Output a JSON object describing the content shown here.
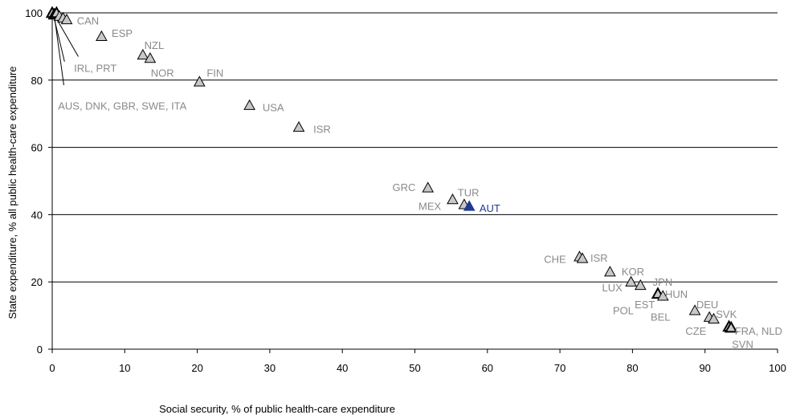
{
  "chart_data": {
    "type": "scatter",
    "xlabel": "Social security, % of public health-care expenditure",
    "ylabel": "State expenditure, % all public health-care expenditure",
    "xlim": [
      0,
      100
    ],
    "ylim": [
      0,
      100
    ],
    "xticks": [
      "0",
      "10",
      "20",
      "30",
      "40",
      "50",
      "60",
      "70",
      "80",
      "90",
      "100"
    ],
    "yticks": [
      "0",
      "20",
      "40",
      "60",
      "80",
      "100"
    ],
    "grid": "horizontal",
    "highlight_color": "#1f3a93",
    "marker_color": "#c8c8c8",
    "points": [
      {
        "x": 0.0,
        "y": 100,
        "bold": true
      },
      {
        "x": 0.3,
        "y": 99.5,
        "bold": true
      },
      {
        "x": 0.6,
        "y": 100,
        "bold": true
      },
      {
        "x": 1.0,
        "y": 99,
        "bold": false
      },
      {
        "x": 1.5,
        "y": 98.5,
        "bold": false
      },
      {
        "x": 2.0,
        "y": 98,
        "bold": false
      },
      {
        "x": 6.8,
        "y": 93,
        "bold": false
      },
      {
        "x": 12.5,
        "y": 87.5,
        "bold": false
      },
      {
        "x": 13.5,
        "y": 86.5,
        "bold": false
      },
      {
        "x": 20.3,
        "y": 79.5,
        "bold": false
      },
      {
        "x": 27.2,
        "y": 72.5,
        "bold": false
      },
      {
        "x": 34.0,
        "y": 66,
        "bold": false
      },
      {
        "x": 51.8,
        "y": 48,
        "bold": false
      },
      {
        "x": 55.2,
        "y": 44.5,
        "bold": false
      },
      {
        "x": 56.8,
        "y": 43,
        "bold": false
      },
      {
        "x": 57.5,
        "y": 42.5,
        "bold": false,
        "highlight": true
      },
      {
        "x": 72.7,
        "y": 27.5,
        "bold": false
      },
      {
        "x": 73.1,
        "y": 27,
        "bold": false
      },
      {
        "x": 76.9,
        "y": 23,
        "bold": false
      },
      {
        "x": 79.8,
        "y": 20,
        "bold": false
      },
      {
        "x": 81.1,
        "y": 19,
        "bold": false
      },
      {
        "x": 83.5,
        "y": 16.5,
        "bold": true
      },
      {
        "x": 84.2,
        "y": 15.8,
        "bold": false
      },
      {
        "x": 88.6,
        "y": 11.5,
        "bold": false
      },
      {
        "x": 90.6,
        "y": 9.5,
        "bold": false
      },
      {
        "x": 91.2,
        "y": 9,
        "bold": false
      },
      {
        "x": 93.3,
        "y": 6.7,
        "bold": true
      },
      {
        "x": 93.6,
        "y": 6.4,
        "bold": true
      }
    ],
    "labels": [
      {
        "text": "CAN",
        "x": 3.4,
        "y": 97.7
      },
      {
        "text": "ESP",
        "x": 8.2,
        "y": 94.0
      },
      {
        "text": "NZL",
        "x": 12.7,
        "y": 90.5
      },
      {
        "text": "IRL, PRT",
        "x": 3.0,
        "y": 83.7
      },
      {
        "text": "NOR",
        "x": 13.6,
        "y": 82.2
      },
      {
        "text": "FIN",
        "x": 21.3,
        "y": 82.2
      },
      {
        "text": "AUS, DNK, GBR, SWE, ITA",
        "x": 0.8,
        "y": 72.4
      },
      {
        "text": "USA",
        "x": 29.0,
        "y": 71.9
      },
      {
        "text": "ISR",
        "x": 36.0,
        "y": 65.5
      },
      {
        "text": "GRC",
        "x": 46.9,
        "y": 48.2
      },
      {
        "text": "TUR",
        "x": 55.9,
        "y": 46.6
      },
      {
        "text": "MEX",
        "x": 50.5,
        "y": 42.6
      },
      {
        "text": "AUT",
        "x": 58.9,
        "y": 42.0,
        "highlight": true
      },
      {
        "text": "CHE",
        "x": 67.8,
        "y": 26.8
      },
      {
        "text": "ISR",
        "x": 74.2,
        "y": 27.2
      },
      {
        "text": "KOR",
        "x": 78.5,
        "y": 23.1
      },
      {
        "text": "JPN",
        "x": 82.8,
        "y": 20.0
      },
      {
        "text": "LUX",
        "x": 75.8,
        "y": 18.4
      },
      {
        "text": "HUN",
        "x": 84.5,
        "y": 16.5
      },
      {
        "text": "EST",
        "x": 80.3,
        "y": 13.4
      },
      {
        "text": "DEU",
        "x": 88.8,
        "y": 13.4
      },
      {
        "text": "POL",
        "x": 77.3,
        "y": 11.6
      },
      {
        "text": "SVK",
        "x": 91.5,
        "y": 10.5
      },
      {
        "text": "BEL",
        "x": 82.5,
        "y": 9.7
      },
      {
        "text": "CZE",
        "x": 87.3,
        "y": 5.5
      },
      {
        "text": "FRA, NLD",
        "x": 94.1,
        "y": 5.5
      },
      {
        "text": "SVN",
        "x": 93.7,
        "y": 1.5
      }
    ],
    "leaders": [
      {
        "x1": 0.2,
        "y1": 99,
        "x2": 1.7,
        "y2": 85.5
      },
      {
        "x1": 0.4,
        "y1": 99,
        "x2": 3.6,
        "y2": 87.0
      },
      {
        "x1": 0.3,
        "y1": 99,
        "x2": 1.6,
        "y2": 78.5
      }
    ]
  }
}
